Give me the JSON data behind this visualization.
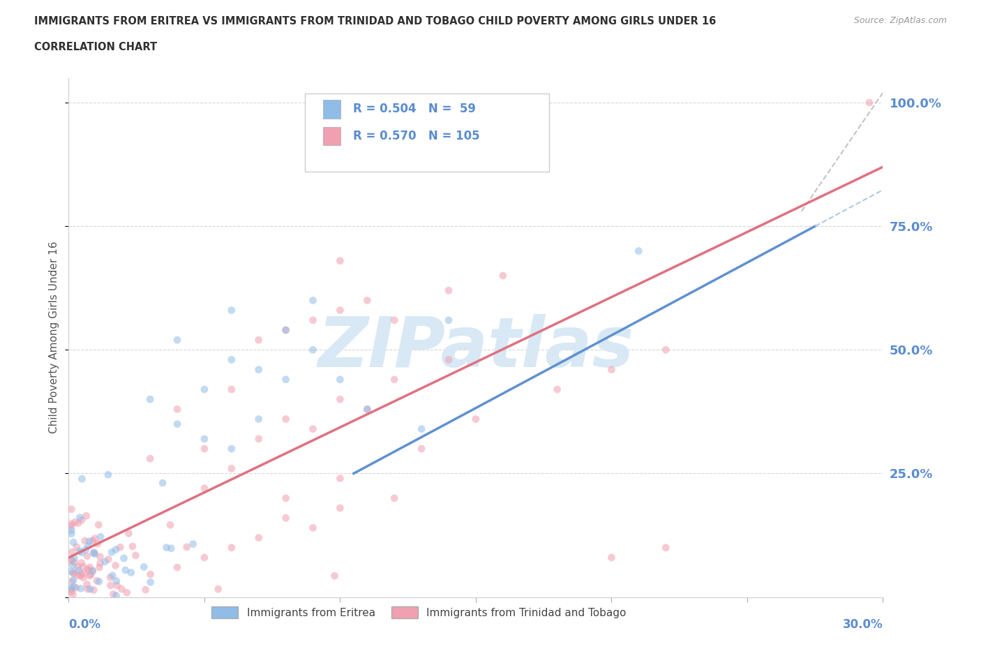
{
  "title_line1": "IMMIGRANTS FROM ERITREA VS IMMIGRANTS FROM TRINIDAD AND TOBAGO CHILD POVERTY AMONG GIRLS UNDER 16",
  "title_line2": "CORRELATION CHART",
  "source": "Source: ZipAtlas.com",
  "ylabel": "Child Poverty Among Girls Under 16",
  "xlim": [
    0.0,
    0.3
  ],
  "ylim": [
    0.0,
    1.05
  ],
  "watermark": "ZIPatlas",
  "background_color": "#ffffff",
  "scatter_alpha": 0.55,
  "scatter_size": 60,
  "eritrea_color": "#90bce8",
  "tt_color": "#f0a0b0",
  "trend_eritrea_color": "#6090d0",
  "trend_tt_color": "#e07080",
  "trend_eritrea_dashed_color": "#b0c8e8",
  "grid_color": "#cccccc",
  "axis_label_color": "#5b8cd0",
  "title_color": "#303030",
  "watermark_color": "#d8e8f5",
  "watermark_fontsize": 72,
  "legend_R1": "0.504",
  "legend_N1": "59",
  "legend_R2": "0.570",
  "legend_N2": "105"
}
